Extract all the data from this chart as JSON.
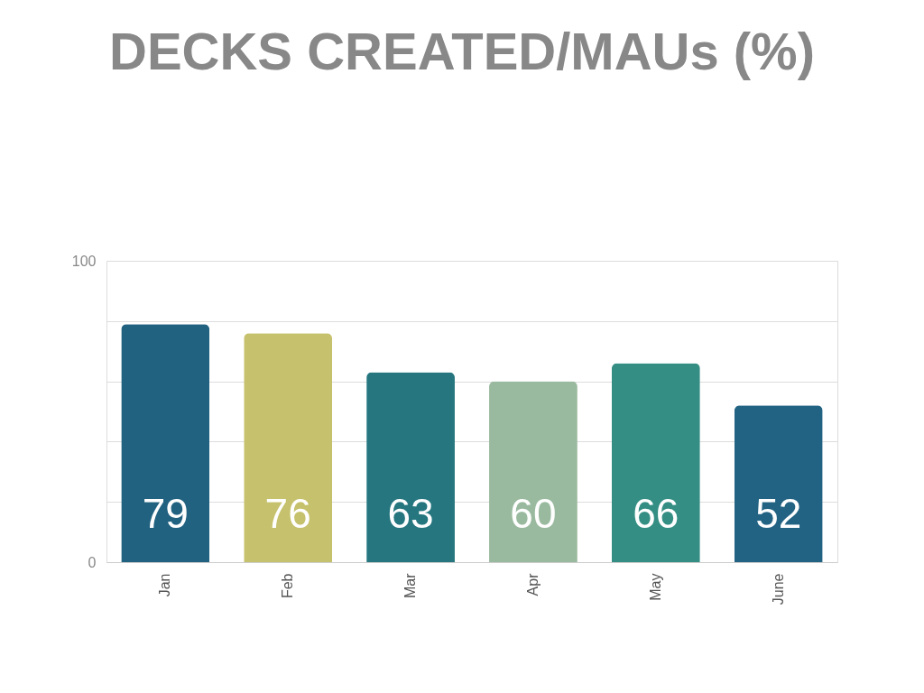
{
  "chart_data": {
    "type": "bar",
    "title": "DECKS CREATED/MAUs (%)",
    "categories": [
      "Jan",
      "Feb",
      "Mar",
      "Apr",
      "May",
      "June"
    ],
    "values": [
      79,
      76,
      63,
      60,
      66,
      52
    ],
    "colors": [
      "#226281",
      "#c6c16c",
      "#25767f",
      "#9aba9f",
      "#348e84",
      "#226283"
    ],
    "ylim": [
      0,
      100
    ],
    "yticks": [
      0,
      {
        "value": 20,
        "label": null
      },
      {
        "value": 40,
        "label": null
      },
      {
        "value": 60,
        "label": null
      },
      {
        "value": 80,
        "label": null
      },
      100
    ],
    "grid": "y",
    "data_labels": true
  }
}
